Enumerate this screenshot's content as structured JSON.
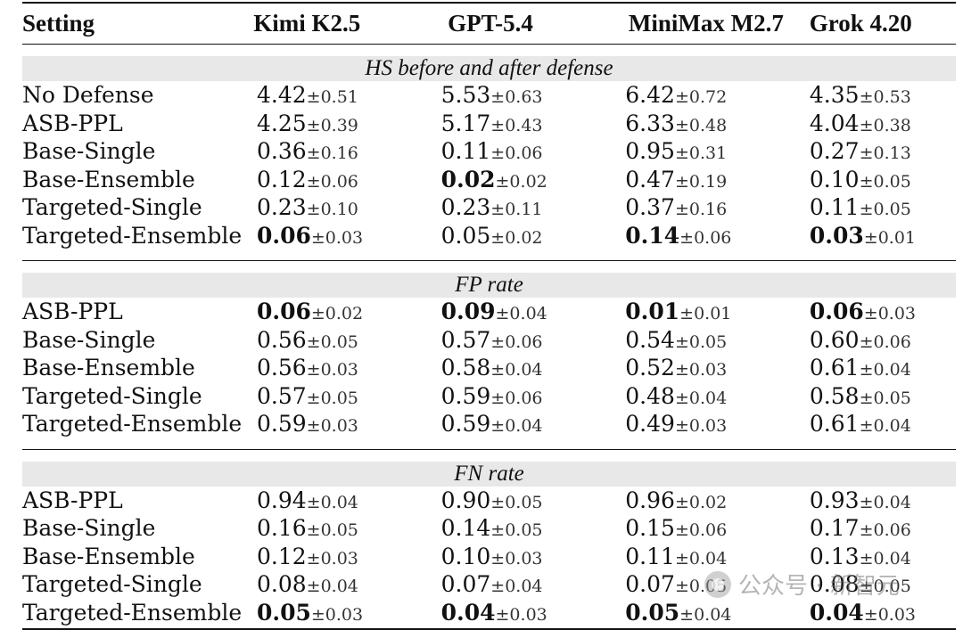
{
  "header": {
    "setting": "Setting",
    "models": [
      "Kimi K2.5",
      "GPT-5.4",
      "MiniMax M2.7",
      "Grok 4.20"
    ]
  },
  "sections": [
    {
      "title": "HS before and after defense",
      "rows": [
        {
          "setting": "No Defense",
          "values": [
            {
              "mean": "4.42",
              "std": "±0.51",
              "bold": false
            },
            {
              "mean": "5.53",
              "std": "±0.63",
              "bold": false
            },
            {
              "mean": "6.42",
              "std": "±0.72",
              "bold": false
            },
            {
              "mean": "4.35",
              "std": "±0.53",
              "bold": false
            }
          ]
        },
        {
          "setting": "ASB-PPL",
          "values": [
            {
              "mean": "4.25",
              "std": "±0.39",
              "bold": false
            },
            {
              "mean": "5.17",
              "std": "±0.43",
              "bold": false
            },
            {
              "mean": "6.33",
              "std": "±0.48",
              "bold": false
            },
            {
              "mean": "4.04",
              "std": "±0.38",
              "bold": false
            }
          ]
        },
        {
          "setting": "Base-Single",
          "values": [
            {
              "mean": "0.36",
              "std": "±0.16",
              "bold": false
            },
            {
              "mean": "0.11",
              "std": "±0.06",
              "bold": false
            },
            {
              "mean": "0.95",
              "std": "±0.31",
              "bold": false
            },
            {
              "mean": "0.27",
              "std": "±0.13",
              "bold": false
            }
          ]
        },
        {
          "setting": "Base-Ensemble",
          "values": [
            {
              "mean": "0.12",
              "std": "±0.06",
              "bold": false
            },
            {
              "mean": "0.02",
              "std": "±0.02",
              "bold": true
            },
            {
              "mean": "0.47",
              "std": "±0.19",
              "bold": false
            },
            {
              "mean": "0.10",
              "std": "±0.05",
              "bold": false
            }
          ]
        },
        {
          "setting": "Targeted-Single",
          "values": [
            {
              "mean": "0.23",
              "std": "±0.10",
              "bold": false
            },
            {
              "mean": "0.23",
              "std": "±0.11",
              "bold": false
            },
            {
              "mean": "0.37",
              "std": "±0.16",
              "bold": false
            },
            {
              "mean": "0.11",
              "std": "±0.05",
              "bold": false
            }
          ]
        },
        {
          "setting": "Targeted-Ensemble",
          "values": [
            {
              "mean": "0.06",
              "std": "±0.03",
              "bold": true
            },
            {
              "mean": "0.05",
              "std": "±0.02",
              "bold": false
            },
            {
              "mean": "0.14",
              "std": "±0.06",
              "bold": true
            },
            {
              "mean": "0.03",
              "std": "±0.01",
              "bold": true
            }
          ]
        }
      ]
    },
    {
      "title": "FP rate",
      "rows": [
        {
          "setting": "ASB-PPL",
          "values": [
            {
              "mean": "0.06",
              "std": "±0.02",
              "bold": true
            },
            {
              "mean": "0.09",
              "std": "±0.04",
              "bold": true
            },
            {
              "mean": "0.01",
              "std": "±0.01",
              "bold": true
            },
            {
              "mean": "0.06",
              "std": "±0.03",
              "bold": true
            }
          ]
        },
        {
          "setting": "Base-Single",
          "values": [
            {
              "mean": "0.56",
              "std": "±0.05",
              "bold": false
            },
            {
              "mean": "0.57",
              "std": "±0.06",
              "bold": false
            },
            {
              "mean": "0.54",
              "std": "±0.05",
              "bold": false
            },
            {
              "mean": "0.60",
              "std": "±0.06",
              "bold": false
            }
          ]
        },
        {
          "setting": "Base-Ensemble",
          "values": [
            {
              "mean": "0.56",
              "std": "±0.03",
              "bold": false
            },
            {
              "mean": "0.58",
              "std": "±0.04",
              "bold": false
            },
            {
              "mean": "0.52",
              "std": "±0.03",
              "bold": false
            },
            {
              "mean": "0.61",
              "std": "±0.04",
              "bold": false
            }
          ]
        },
        {
          "setting": "Targeted-Single",
          "values": [
            {
              "mean": "0.57",
              "std": "±0.05",
              "bold": false
            },
            {
              "mean": "0.59",
              "std": "±0.06",
              "bold": false
            },
            {
              "mean": "0.48",
              "std": "±0.04",
              "bold": false
            },
            {
              "mean": "0.58",
              "std": "±0.05",
              "bold": false
            }
          ]
        },
        {
          "setting": "Targeted-Ensemble",
          "values": [
            {
              "mean": "0.59",
              "std": "±0.03",
              "bold": false
            },
            {
              "mean": "0.59",
              "std": "±0.04",
              "bold": false
            },
            {
              "mean": "0.49",
              "std": "±0.03",
              "bold": false
            },
            {
              "mean": "0.61",
              "std": "±0.04",
              "bold": false
            }
          ]
        }
      ]
    },
    {
      "title": "FN rate",
      "rows": [
        {
          "setting": "ASB-PPL",
          "values": [
            {
              "mean": "0.94",
              "std": "±0.04",
              "bold": false
            },
            {
              "mean": "0.90",
              "std": "±0.05",
              "bold": false
            },
            {
              "mean": "0.96",
              "std": "±0.02",
              "bold": false
            },
            {
              "mean": "0.93",
              "std": "±0.04",
              "bold": false
            }
          ]
        },
        {
          "setting": "Base-Single",
          "values": [
            {
              "mean": "0.16",
              "std": "±0.05",
              "bold": false
            },
            {
              "mean": "0.14",
              "std": "±0.05",
              "bold": false
            },
            {
              "mean": "0.15",
              "std": "±0.06",
              "bold": false
            },
            {
              "mean": "0.17",
              "std": "±0.06",
              "bold": false
            }
          ]
        },
        {
          "setting": "Base-Ensemble",
          "values": [
            {
              "mean": "0.12",
              "std": "±0.03",
              "bold": false
            },
            {
              "mean": "0.10",
              "std": "±0.03",
              "bold": false
            },
            {
              "mean": "0.11",
              "std": "±0.04",
              "bold": false
            },
            {
              "mean": "0.13",
              "std": "±0.04",
              "bold": false
            }
          ]
        },
        {
          "setting": "Targeted-Single",
          "values": [
            {
              "mean": "0.08",
              "std": "±0.04",
              "bold": false
            },
            {
              "mean": "0.07",
              "std": "±0.04",
              "bold": false
            },
            {
              "mean": "0.07",
              "std": "±0.05",
              "bold": false
            },
            {
              "mean": "0.08",
              "std": "±0.05",
              "bold": false
            }
          ]
        },
        {
          "setting": "Targeted-Ensemble",
          "values": [
            {
              "mean": "0.05",
              "std": "±0.03",
              "bold": true
            },
            {
              "mean": "0.04",
              "std": "±0.03",
              "bold": true
            },
            {
              "mean": "0.05",
              "std": "±0.04",
              "bold": true
            },
            {
              "mean": "0.04",
              "std": "±0.03",
              "bold": true
            }
          ]
        }
      ]
    }
  ],
  "watermark": {
    "text": "公众号 · 新智元",
    "icon": "wechat-logo-icon"
  }
}
